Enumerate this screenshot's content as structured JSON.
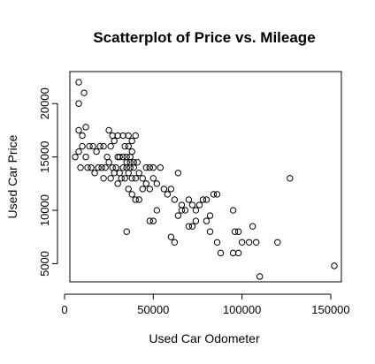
{
  "chart_data": {
    "type": "scatter",
    "title": "Scatterplot of Price vs. Mileage",
    "xlabel": "Used Car Odometer",
    "ylabel": "Used Car Price",
    "xlim": [
      3000,
      156000
    ],
    "ylim": [
      3300,
      23000
    ],
    "xticks": [
      0,
      50000,
      100000,
      150000
    ],
    "xtick_labels": [
      "0",
      "50000",
      "100000",
      "150000"
    ],
    "yticks": [
      5000,
      10000,
      15000,
      20000
    ],
    "ytick_labels": [
      "5000",
      "10000",
      "15000",
      "20000"
    ],
    "grid": false,
    "marker": "open-circle",
    "points": [
      [
        8000,
        22000
      ],
      [
        11000,
        21000
      ],
      [
        8000,
        20000
      ],
      [
        8000,
        17500
      ],
      [
        10000,
        17000
      ],
      [
        12000,
        17800
      ],
      [
        6000,
        15000
      ],
      [
        8000,
        15500
      ],
      [
        10000,
        16000
      ],
      [
        12000,
        15000
      ],
      [
        14000,
        16000
      ],
      [
        16000,
        16000
      ],
      [
        18000,
        15500
      ],
      [
        20000,
        16000
      ],
      [
        22000,
        16000
      ],
      [
        24000,
        15000
      ],
      [
        26000,
        16000
      ],
      [
        28000,
        16500
      ],
      [
        25000,
        17500
      ],
      [
        27000,
        17000
      ],
      [
        30000,
        17000
      ],
      [
        33000,
        17000
      ],
      [
        36000,
        17000
      ],
      [
        38000,
        16500
      ],
      [
        40000,
        17000
      ],
      [
        34000,
        16000
      ],
      [
        36000,
        16000
      ],
      [
        38000,
        15500
      ],
      [
        9000,
        14000
      ],
      [
        13000,
        14000
      ],
      [
        15000,
        14000
      ],
      [
        17000,
        13500
      ],
      [
        19000,
        14000
      ],
      [
        21000,
        14000
      ],
      [
        23000,
        14000
      ],
      [
        25000,
        14500
      ],
      [
        27000,
        14000
      ],
      [
        29000,
        14000
      ],
      [
        31000,
        13500
      ],
      [
        33000,
        14000
      ],
      [
        35000,
        14500
      ],
      [
        37000,
        14000
      ],
      [
        39000,
        14000
      ],
      [
        41000,
        14500
      ],
      [
        22000,
        13000
      ],
      [
        26000,
        13000
      ],
      [
        28000,
        13500
      ],
      [
        30000,
        12500
      ],
      [
        32000,
        13000
      ],
      [
        34000,
        13000
      ],
      [
        36000,
        13500
      ],
      [
        38000,
        13000
      ],
      [
        40000,
        13000
      ],
      [
        42000,
        13500
      ],
      [
        44000,
        13000
      ],
      [
        46000,
        14000
      ],
      [
        48000,
        14000
      ],
      [
        50000,
        14000
      ],
      [
        31000,
        15000
      ],
      [
        33000,
        15000
      ],
      [
        35000,
        15000
      ],
      [
        37000,
        15000
      ],
      [
        39000,
        14500
      ],
      [
        35000,
        14000
      ],
      [
        37000,
        14500
      ],
      [
        30000,
        15000
      ],
      [
        36000,
        12000
      ],
      [
        38000,
        11500
      ],
      [
        40000,
        11000
      ],
      [
        42000,
        11000
      ],
      [
        44000,
        12000
      ],
      [
        46000,
        12500
      ],
      [
        48000,
        12000
      ],
      [
        50000,
        13000
      ],
      [
        52000,
        12500
      ],
      [
        54000,
        14000
      ],
      [
        56000,
        12000
      ],
      [
        58000,
        11500
      ],
      [
        60000,
        12000
      ],
      [
        62000,
        11000
      ],
      [
        64000,
        13500
      ],
      [
        66000,
        10500
      ],
      [
        68000,
        10000
      ],
      [
        70000,
        11000
      ],
      [
        72000,
        10500
      ],
      [
        74000,
        10000
      ],
      [
        76000,
        10500
      ],
      [
        78000,
        11000
      ],
      [
        80000,
        11000
      ],
      [
        82000,
        9500
      ],
      [
        84000,
        11500
      ],
      [
        86000,
        11500
      ],
      [
        35000,
        8000
      ],
      [
        48000,
        9000
      ],
      [
        50000,
        9000
      ],
      [
        52000,
        10000
      ],
      [
        60000,
        7500
      ],
      [
        62000,
        7000
      ],
      [
        64000,
        9500
      ],
      [
        66000,
        10000
      ],
      [
        70000,
        8500
      ],
      [
        72000,
        8500
      ],
      [
        74000,
        9000
      ],
      [
        80000,
        9000
      ],
      [
        82000,
        8000
      ],
      [
        86000,
        7000
      ],
      [
        88000,
        6000
      ],
      [
        95000,
        10000
      ],
      [
        96000,
        8000
      ],
      [
        98000,
        8000
      ],
      [
        95000,
        6000
      ],
      [
        98000,
        6000
      ],
      [
        100000,
        7000
      ],
      [
        104000,
        7000
      ],
      [
        106000,
        8500
      ],
      [
        108000,
        7000
      ],
      [
        110000,
        3800
      ],
      [
        120000,
        7000
      ],
      [
        127000,
        13000
      ],
      [
        152000,
        4800
      ]
    ]
  }
}
